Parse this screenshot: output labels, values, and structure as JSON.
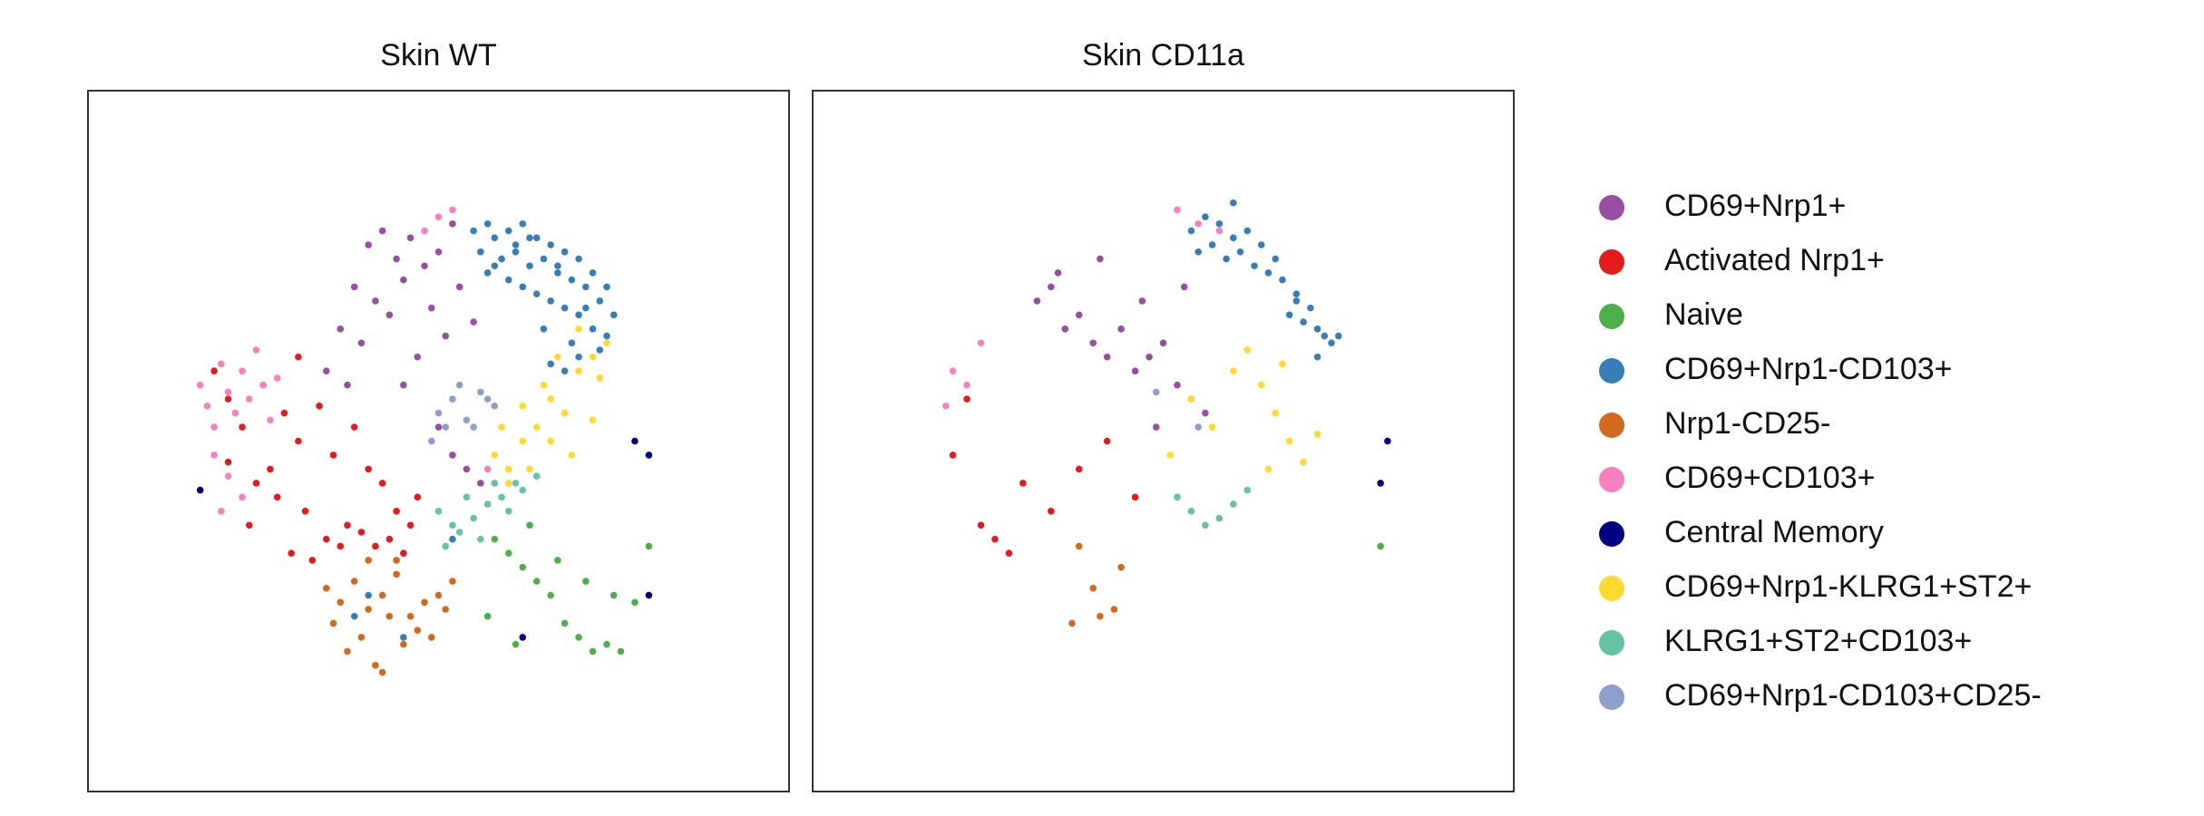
{
  "chart_data": [
    {
      "type": "scatter",
      "title": "Skin WT",
      "xlim": [
        0,
        100
      ],
      "ylim": [
        0,
        100
      ],
      "legend": "right",
      "series": [
        {
          "name": "CD69+Nrp1+",
          "color": "#984ea3",
          "x": [
            40,
            42,
            44,
            46,
            48,
            50,
            52,
            38,
            41,
            45,
            49,
            53,
            36,
            39,
            43,
            47,
            51,
            55,
            34,
            37,
            50,
            52,
            54,
            56,
            45
          ],
          "y": [
            78,
            80,
            76,
            79,
            75,
            77,
            81,
            72,
            70,
            73,
            69,
            72,
            66,
            64,
            68,
            62,
            65,
            67,
            60,
            58,
            52,
            48,
            46,
            44,
            58
          ]
        },
        {
          "name": "Activated Nrp1+",
          "color": "#e41a1c",
          "x": [
            18,
            20,
            22,
            25,
            28,
            30,
            33,
            35,
            38,
            40,
            42,
            44,
            46,
            24,
            27,
            31,
            34,
            37,
            41,
            45,
            20,
            23,
            26,
            29,
            32,
            36,
            39,
            43,
            47,
            30
          ],
          "y": [
            60,
            56,
            52,
            58,
            54,
            50,
            55,
            48,
            52,
            46,
            44,
            40,
            38,
            44,
            42,
            40,
            36,
            38,
            35,
            34,
            47,
            38,
            46,
            34,
            33,
            35,
            37,
            36,
            42,
            62
          ]
        },
        {
          "name": "Naive",
          "color": "#4daf4a",
          "x": [
            58,
            60,
            62,
            64,
            66,
            68,
            70,
            72,
            74,
            76,
            78,
            80,
            63,
            67,
            71,
            75,
            57,
            61
          ],
          "y": [
            36,
            34,
            32,
            30,
            28,
            24,
            22,
            20,
            21,
            20,
            27,
            35,
            38,
            33,
            30,
            28,
            25,
            21
          ]
        },
        {
          "name": "CD69+Nrp1-CD103+",
          "color": "#377eb8",
          "x": [
            55,
            57,
            58,
            60,
            62,
            64,
            66,
            68,
            70,
            72,
            74,
            56,
            59,
            61,
            63,
            65,
            67,
            69,
            71,
            73,
            75,
            60,
            62,
            64,
            66,
            68,
            70,
            72,
            74,
            58,
            63,
            67,
            71,
            65,
            69,
            73,
            66,
            70,
            61,
            57,
            40,
            45,
            52,
            38,
            68
          ],
          "y": [
            80,
            81,
            79,
            80,
            81,
            79,
            78,
            77,
            76,
            74,
            72,
            77,
            76,
            77,
            75,
            76,
            74,
            73,
            72,
            70,
            68,
            73,
            72,
            71,
            70,
            69,
            68,
            66,
            65,
            75,
            79,
            75,
            69,
            66,
            64,
            63,
            61,
            62,
            78,
            74,
            28,
            22,
            36,
            25,
            60
          ]
        },
        {
          "name": "Nrp1-CD25-",
          "color": "#d2691e",
          "x": [
            34,
            36,
            38,
            40,
            42,
            44,
            46,
            48,
            50,
            52,
            35,
            39,
            43,
            47,
            51,
            37,
            41,
            45,
            49,
            44,
            40,
            42
          ],
          "y": [
            29,
            27,
            30,
            26,
            28,
            31,
            25,
            27,
            28,
            30,
            24,
            22,
            25,
            23,
            26,
            20,
            18,
            21,
            22,
            33,
            33,
            17
          ]
        },
        {
          "name": "CD69+CD103+",
          "color": "#f781bf",
          "x": [
            16,
            17,
            18,
            19,
            20,
            21,
            22,
            23,
            24,
            25,
            26,
            27,
            18,
            20,
            22,
            19,
            48,
            50,
            52,
            57
          ],
          "y": [
            58,
            55,
            52,
            61,
            57,
            54,
            60,
            56,
            63,
            58,
            53,
            59,
            48,
            45,
            42,
            40,
            80,
            82,
            83,
            46
          ]
        },
        {
          "name": "Central Memory",
          "color": "#000080",
          "x": [
            16,
            78,
            80,
            80,
            62
          ],
          "y": [
            43,
            50,
            48,
            28,
            22
          ]
        },
        {
          "name": "CD69+Nrp1-KLRG1+ST2+",
          "color": "#ffd92f",
          "x": [
            58,
            60,
            62,
            64,
            66,
            68,
            70,
            72,
            74,
            60,
            63,
            66,
            69,
            72,
            65,
            67,
            70,
            59,
            62,
            73
          ],
          "y": [
            48,
            46,
            50,
            52,
            56,
            54,
            60,
            62,
            64,
            44,
            46,
            50,
            48,
            53,
            58,
            62,
            66,
            52,
            55,
            59
          ]
        },
        {
          "name": "KLRG1+ST2+CD103+",
          "color": "#66c2a5",
          "x": [
            50,
            52,
            54,
            56,
            58,
            60,
            62,
            64,
            51,
            53,
            55,
            57,
            59,
            61
          ],
          "y": [
            40,
            38,
            42,
            36,
            44,
            40,
            43,
            45,
            35,
            37,
            39,
            41,
            42,
            44
          ]
        },
        {
          "name": "CD69+Nrp1-CD103+CD25-",
          "color": "#8da0cb",
          "x": [
            50,
            52,
            54,
            56,
            58,
            51,
            53,
            55,
            57,
            49
          ],
          "y": [
            54,
            56,
            53,
            57,
            55,
            52,
            58,
            52,
            56,
            50
          ]
        }
      ]
    },
    {
      "type": "scatter",
      "title": "Skin CD11a",
      "xlim": [
        0,
        100
      ],
      "ylim": [
        0,
        100
      ],
      "series": [
        {
          "name": "CD69+Nrp1+",
          "color": "#984ea3",
          "x": [
            32,
            34,
            36,
            38,
            40,
            42,
            44,
            46,
            48,
            50,
            52,
            54,
            56,
            35,
            41,
            47,
            53,
            49
          ],
          "y": [
            70,
            72,
            66,
            68,
            64,
            62,
            66,
            60,
            62,
            64,
            58,
            56,
            54,
            74,
            76,
            70,
            72,
            52
          ]
        },
        {
          "name": "Activated Nrp1+",
          "color": "#e41a1c",
          "x": [
            20,
            22,
            24,
            26,
            28,
            30,
            34,
            38,
            42,
            46
          ],
          "y": [
            48,
            56,
            38,
            36,
            34,
            44,
            40,
            46,
            50,
            42
          ]
        },
        {
          "name": "Naive",
          "color": "#4daf4a",
          "x": [
            81
          ],
          "y": [
            35
          ]
        },
        {
          "name": "CD69+Nrp1-CD103+",
          "color": "#377eb8",
          "x": [
            54,
            56,
            58,
            60,
            62,
            64,
            66,
            55,
            57,
            59,
            61,
            63,
            65,
            67,
            69,
            68,
            70,
            72,
            74,
            71,
            73,
            69,
            72,
            75,
            60
          ],
          "y": [
            80,
            82,
            81,
            79,
            80,
            78,
            76,
            77,
            78,
            76,
            77,
            75,
            74,
            73,
            70,
            68,
            67,
            66,
            64,
            69,
            65,
            71,
            62,
            65,
            84
          ]
        },
        {
          "name": "Nrp1-CD25-",
          "color": "#d2691e",
          "x": [
            37,
            38,
            40,
            41,
            43,
            44
          ],
          "y": [
            24,
            35,
            29,
            25,
            26,
            32
          ]
        },
        {
          "name": "CD69+CD103+",
          "color": "#f781bf",
          "x": [
            19,
            20,
            22,
            24,
            52,
            55,
            58
          ],
          "y": [
            55,
            60,
            58,
            64,
            83,
            81,
            80
          ]
        },
        {
          "name": "Central Memory",
          "color": "#000080",
          "x": [
            82,
            81
          ],
          "y": [
            50,
            44
          ]
        },
        {
          "name": "CD69+Nrp1-KLRG1+ST2+",
          "color": "#ffd92f",
          "x": [
            51,
            54,
            57,
            60,
            62,
            64,
            66,
            68,
            70,
            72,
            65,
            67
          ],
          "y": [
            48,
            56,
            52,
            60,
            63,
            58,
            54,
            50,
            47,
            51,
            46,
            61
          ]
        },
        {
          "name": "KLRG1+ST2+CD103+",
          "color": "#66c2a5",
          "x": [
            52,
            54,
            56,
            58,
            60,
            62
          ],
          "y": [
            42,
            40,
            38,
            39,
            41,
            43
          ]
        },
        {
          "name": "CD69+Nrp1-CD103+CD25-",
          "color": "#8da0cb",
          "x": [
            49,
            55
          ],
          "y": [
            57,
            52
          ]
        }
      ]
    }
  ]
}
